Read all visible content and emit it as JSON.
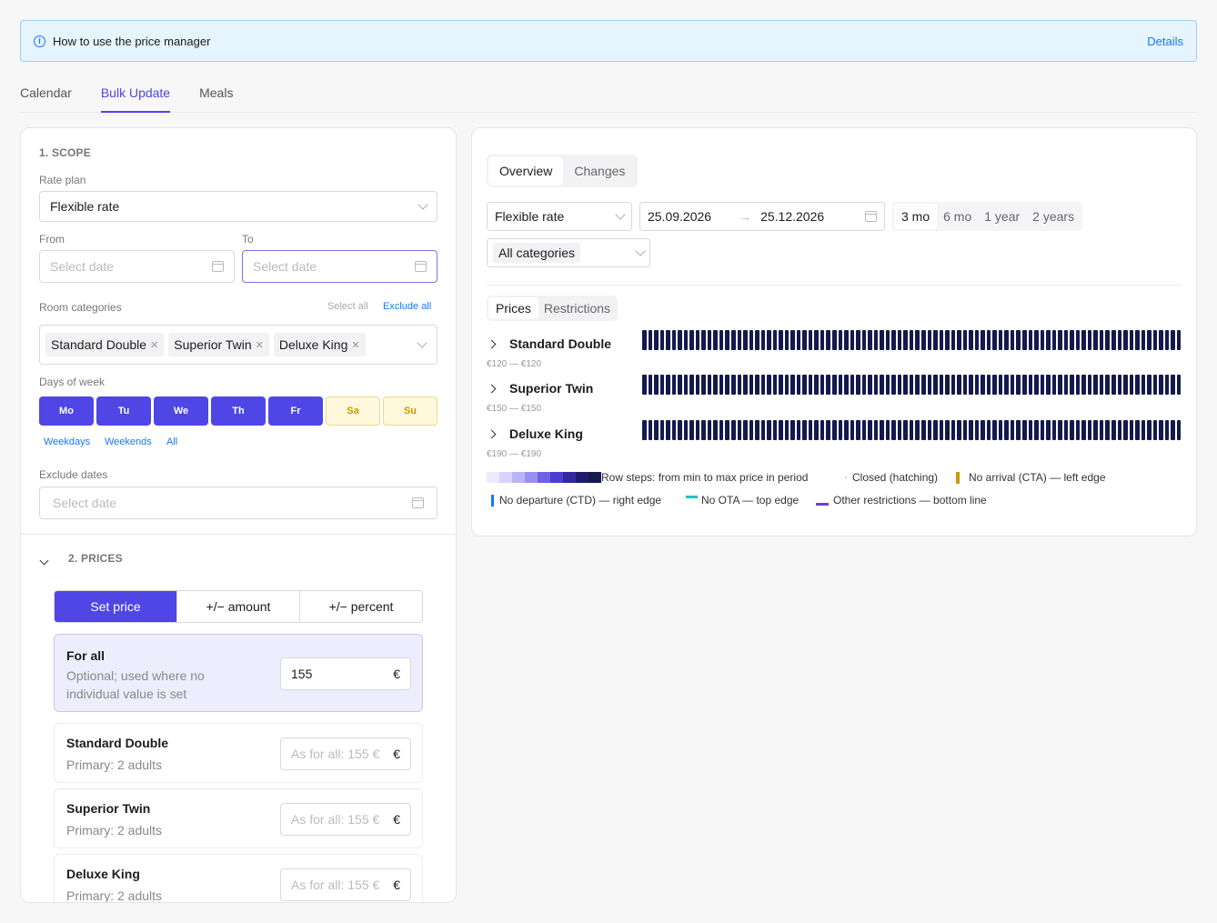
{
  "info": {
    "text": "How to use the price manager",
    "details": "Details"
  },
  "tabs": [
    "Calendar",
    "Bulk Update",
    "Meals"
  ],
  "scope": {
    "title": "1. SCOPE",
    "rate_plan_label": "Rate plan",
    "rate_plan_value": "Flexible rate",
    "from_label": "From",
    "to_label": "To",
    "date_placeholder": "Select date",
    "room_categories_label": "Room categories",
    "select_all": "Select all",
    "exclude_all": "Exclude all",
    "room_tags": [
      "Standard Double",
      "Superior Twin",
      "Deluxe King"
    ],
    "days_label": "Days of week",
    "days": [
      "Mo",
      "Tu",
      "We",
      "Th",
      "Fr",
      "Sa",
      "Su"
    ],
    "day_shortcuts": [
      "Weekdays",
      "Weekends",
      "All"
    ],
    "exclude_label": "Exclude dates"
  },
  "prices": {
    "title": "2. PRICES",
    "modes": [
      "Set price",
      "+/− amount",
      "+/− percent"
    ],
    "for_all": {
      "title": "For all",
      "hint": "Optional; used where no individual value is set",
      "value": "155",
      "currency": "€"
    },
    "rooms": [
      {
        "name": "Standard Double",
        "sub": "Primary: 2 adults",
        "placeholder": "As for all: 155 €"
      },
      {
        "name": "Superior Twin",
        "sub": "Primary: 2 adults",
        "placeholder": "As for all: 155 €"
      },
      {
        "name": "Deluxe King",
        "sub": "Primary: 2 adults",
        "placeholder": "As for all: 155 €"
      }
    ]
  },
  "overview": {
    "tabs": [
      "Overview",
      "Changes"
    ],
    "rate_plan": "Flexible rate",
    "date_from": "25.09.2026",
    "date_to": "25.12.2026",
    "periods": [
      "3 mo",
      "6 mo",
      "1 year",
      "2 years"
    ],
    "category": "All categories",
    "subtabs": [
      "Prices",
      "Restrictions"
    ],
    "rows": [
      {
        "name": "Standard Double",
        "range": "€120 — €120"
      },
      {
        "name": "Superior Twin",
        "range": "€150 — €150"
      },
      {
        "name": "Deluxe King",
        "range": "€190 — €190"
      }
    ],
    "legend": {
      "steps": "Row steps: from min to max price in period",
      "closed": "Closed (hatching)",
      "cta": "No arrival (CTA) — left edge",
      "ctd": "No departure (CTD) — right edge",
      "ota": "No OTA — top edge",
      "other": "Other restrictions — bottom line"
    },
    "colors": {
      "bar": "#141a4d",
      "cta": "#c99a0a",
      "ctd": "#1677ff",
      "ota": "#1fc2c2",
      "other": "#6d3fd0",
      "accent": "#4f46e5"
    }
  }
}
